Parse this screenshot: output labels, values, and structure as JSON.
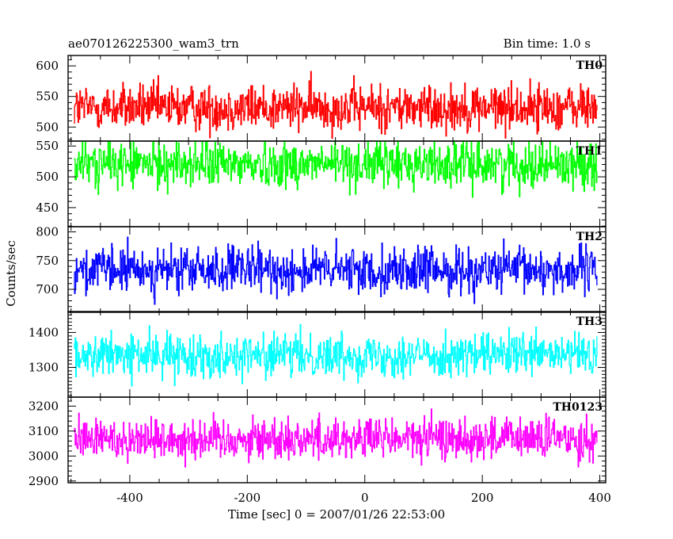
{
  "chart_data": {
    "type": "line",
    "title": "ae070126225300_wam3_trn",
    "subtitle": "Bin time: 1.0 s",
    "xlabel": "Time [sec] 0 = 2007/01/26 22:53:00",
    "ylabel": "Counts/sec",
    "xlim": [
      -505,
      410
    ],
    "x_range_data": [
      -495,
      395
    ],
    "x_ticks": [
      -400,
      -200,
      0,
      200,
      400
    ],
    "grid": false,
    "panels": [
      {
        "name": "TH0",
        "color": "#ff0000",
        "ylim": [
          477,
          617
        ],
        "y_ticks": [
          500,
          550,
          600
        ],
        "mean": 532,
        "amplitude": 38
      },
      {
        "name": "TH1",
        "color": "#00ff00",
        "ylim": [
          419,
          558
        ],
        "y_ticks": [
          450,
          500,
          550
        ],
        "mean": 521,
        "amplitude": 38
      },
      {
        "name": "TH2",
        "color": "#0000ff",
        "ylim": [
          660,
          809
        ],
        "y_ticks": [
          700,
          750,
          800
        ],
        "mean": 733,
        "amplitude": 40
      },
      {
        "name": "TH3",
        "color": "#00ffff",
        "ylim": [
          1215,
          1460
        ],
        "y_ticks": [
          1300,
          1400
        ],
        "mean": 1335,
        "amplitude": 60
      },
      {
        "name": "TH0123",
        "color": "#ff00ff",
        "ylim": [
          2893,
          3236
        ],
        "y_ticks": [
          2900,
          3000,
          3100,
          3200
        ],
        "mean": 3070,
        "amplitude": 85
      }
    ]
  }
}
